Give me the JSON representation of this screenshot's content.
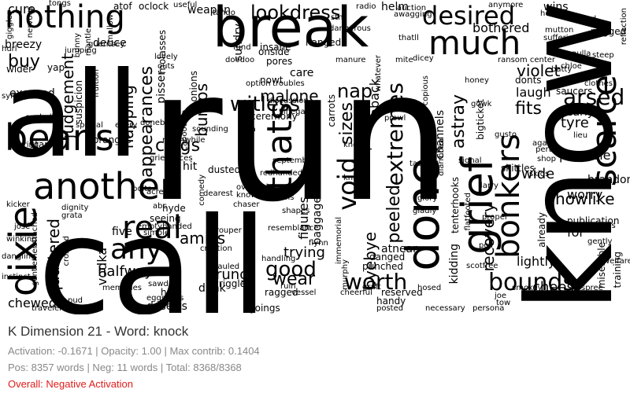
{
  "word_cloud": {
    "words": [
      "call",
      "run",
      "all",
      "know",
      "break",
      "beans",
      "another",
      "dixie",
      "done",
      "grief",
      "nothing",
      "much",
      "thats",
      "bonkers",
      "bounds",
      "scarce",
      "desired",
      "lookdress",
      "arsed",
      "real",
      "any",
      "void",
      "good",
      "worth",
      "wear",
      "extremes",
      "witless",
      "clogs",
      "buy",
      "nap",
      "astray",
      "judgement",
      "peeled",
      "recovery",
      "fits",
      "amiss",
      "napping",
      "appearances",
      "malone",
      "sizes",
      "howlike",
      "quartered",
      "halfway",
      "byebye",
      "trying",
      "cheese",
      "rung",
      "five",
      "violet",
      "laugh",
      "bumps",
      "possible",
      "figures",
      "lightly",
      "tyre",
      "vodka",
      "chewed",
      "dearly",
      "worry",
      "brandon",
      "for",
      "publication",
      "wide",
      "potatoes",
      "tenterhooks",
      "baggage",
      "atnear",
      "danged",
      "punched",
      "reserved",
      "handy",
      "ragged",
      "wriggle",
      "dunk",
      "deserts",
      "how",
      "hyde",
      "seeing",
      "hit",
      "dusted",
      "blazing",
      "ceremony",
      "care",
      "nowt",
      "bothered",
      "cure",
      "weapon",
      "sundry",
      "pores",
      "insane",
      "onside",
      "molasses",
      "pisser",
      "onions",
      "carrots",
      "aback",
      "channels",
      "bigticket",
      "kidding",
      "miserable",
      "saucers",
      "donts",
      "breezy",
      "excused",
      "suspicion",
      "yap",
      "wider",
      "starts",
      "oranges",
      "skittles",
      "already",
      "training",
      "welfare",
      "hanged",
      "fund",
      "vinegar",
      "discussion",
      "doneby",
      "every",
      "special",
      "eyeball",
      "caring",
      "kicker",
      "winking",
      "traveler",
      "memories",
      "sawdust",
      "eggshells",
      "trouper",
      "creation",
      "hauled",
      "handling",
      "resemblance",
      "goings",
      "vessel",
      "ruin",
      "cheerful",
      "posted",
      "necessary",
      "persona",
      "tow",
      "smokey",
      "spree",
      "chimes",
      "darned",
      "skids",
      "lieu",
      "again",
      "pert",
      "gently",
      "clothes",
      "chloe",
      "mutton",
      "pegged",
      "beyond",
      "helped",
      "wins",
      "anymore",
      "suffering",
      "nulla",
      "steep",
      "reflection",
      "mallow",
      "atof",
      "tongs",
      "giggles",
      "oclock",
      "useful",
      "tango",
      "helm",
      "radio",
      "sth",
      "dangerous",
      "auction",
      "awagging",
      "thatll",
      "dicey",
      "whatever",
      "manure",
      "mite",
      "doodoo",
      "overnight",
      "known",
      "chaser",
      "shapes",
      "brooms",
      "immemorial",
      "murphy",
      "knight",
      "gladly",
      "scotfree",
      "graft",
      "hosed",
      "poll",
      "flatfooted",
      "proper",
      "larry",
      "shop",
      "joe",
      "sept",
      "ransom center",
      "honey",
      "batty",
      "gowk",
      "option",
      "troubles",
      "flynn",
      "glory",
      "grata",
      "dignity",
      "attached",
      "josé",
      "dangling",
      "gentlemen",
      "instinct",
      "pud",
      "simple",
      "emptyhanded",
      "abc",
      "acre",
      "bolts",
      "dearest",
      "meanwhile",
      "grievances",
      "redhanded",
      "september",
      "tacks",
      "signal",
      "gusto",
      "deuce",
      "jumping",
      "mantle",
      "guernsey",
      "outs",
      "hurl",
      "sync",
      "fruition",
      "bunny",
      "nervous",
      "lovely",
      "comedy",
      "cabooodle",
      "sounding",
      "knots",
      "earthbound",
      "prowl",
      "copious",
      "hurls",
      "diarrhoea",
      "tremendous",
      "crossed",
      "foothold"
    ],
    "palette": [
      "#000000"
    ]
  },
  "footer": {
    "title": "K Dimension 21 - Word: knock",
    "stats_line1": "Activation: -0.1671 | Opacity: 1.00 | Max contrib: 0.1404",
    "stats_line2": "Pos: 8357 words | Neg: 11 words | Total: 8368/8368",
    "overall": "Overall: Negative Activation",
    "overall_color": "#e21b1b"
  }
}
